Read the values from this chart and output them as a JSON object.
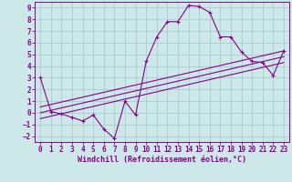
{
  "xlabel": "Windchill (Refroidissement éolien,°C)",
  "background_color": "#cce8e8",
  "grid_color": "#aacccc",
  "line_color": "#880088",
  "spine_color": "#880088",
  "hours": [
    0,
    1,
    2,
    3,
    4,
    5,
    6,
    7,
    8,
    9,
    10,
    11,
    12,
    13,
    14,
    15,
    16,
    17,
    18,
    19,
    20,
    21,
    22,
    23
  ],
  "windchill": [
    3.0,
    0.1,
    -0.1,
    -0.4,
    -0.7,
    -0.2,
    -1.4,
    -2.2,
    1.0,
    -0.2,
    4.4,
    6.5,
    7.8,
    7.8,
    9.2,
    9.1,
    8.6,
    6.5,
    6.5,
    5.2,
    4.4,
    4.3,
    3.2,
    5.3
  ],
  "trend1_y": [
    0.5,
    5.3
  ],
  "trend2_y": [
    0.0,
    4.8
  ],
  "trend3_y": [
    -0.5,
    4.3
  ],
  "trend_x": [
    0,
    23
  ],
  "ylim": [
    -2.5,
    9.5
  ],
  "xlim": [
    -0.5,
    23.5
  ],
  "yticks": [
    -2,
    -1,
    0,
    1,
    2,
    3,
    4,
    5,
    6,
    7,
    8,
    9
  ],
  "xticks": [
    0,
    1,
    2,
    3,
    4,
    5,
    6,
    7,
    8,
    9,
    10,
    11,
    12,
    13,
    14,
    15,
    16,
    17,
    18,
    19,
    20,
    21,
    22,
    23
  ],
  "tick_labelsize": 5.5,
  "xlabel_fontsize": 6.0
}
